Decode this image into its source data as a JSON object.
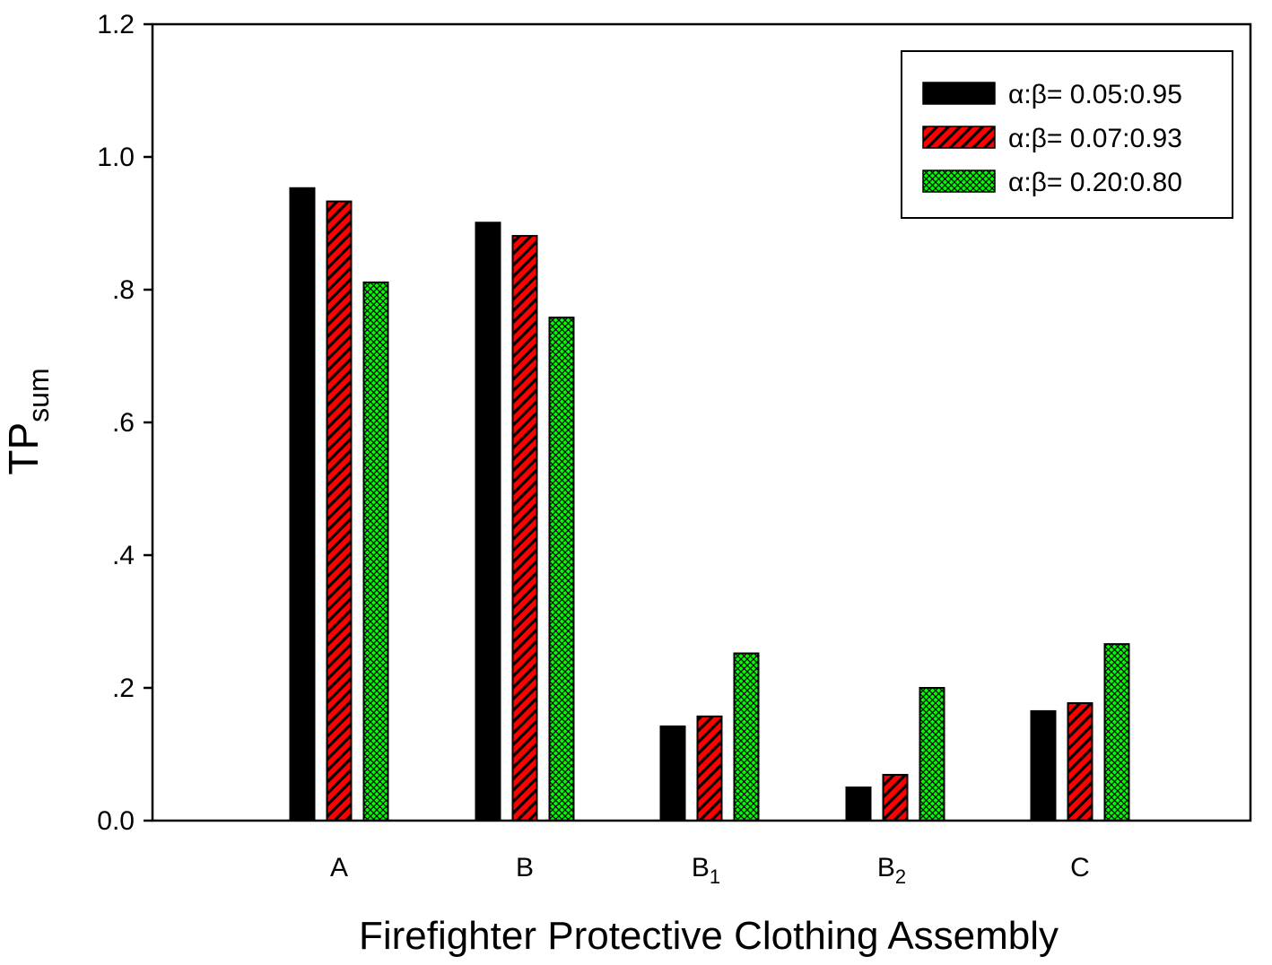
{
  "chart_data": {
    "type": "bar",
    "categories": [
      {
        "base": "A",
        "sub": ""
      },
      {
        "base": "B",
        "sub": ""
      },
      {
        "base": "B",
        "sub": "1"
      },
      {
        "base": "B",
        "sub": "2"
      },
      {
        "base": "C",
        "sub": ""
      }
    ],
    "series": [
      {
        "name": "α:β= 0.05:0.95",
        "values": [
          0.953,
          0.901,
          0.142,
          0.05,
          0.165
        ],
        "color": "#000000",
        "pattern": "solid"
      },
      {
        "name": "α:β= 0.07:0.93",
        "values": [
          0.933,
          0.881,
          0.157,
          0.069,
          0.177
        ],
        "color": "#ff0000",
        "pattern": "diagonal-hatch"
      },
      {
        "name": "α:β= 0.20:0.80",
        "values": [
          0.811,
          0.758,
          0.252,
          0.2,
          0.266
        ],
        "color": "#00ff00",
        "pattern": "crosshatch"
      }
    ],
    "ylabel": {
      "base": "TP",
      "sub": "sum"
    },
    "xlabel": "Firefighter Protective Clothing Assembly",
    "ylim": [
      0,
      1.2
    ],
    "yticks": [
      {
        "value": 0.0,
        "label": "0.0"
      },
      {
        "value": 0.2,
        "label": ".2"
      },
      {
        "value": 0.4,
        "label": ".4"
      },
      {
        "value": 0.6,
        "label": ".6"
      },
      {
        "value": 0.8,
        "label": ".8"
      },
      {
        "value": 1.0,
        "label": "1.0"
      },
      {
        "value": 1.2,
        "label": "1.2"
      }
    ],
    "grid": false,
    "legend_position": "top-right"
  }
}
